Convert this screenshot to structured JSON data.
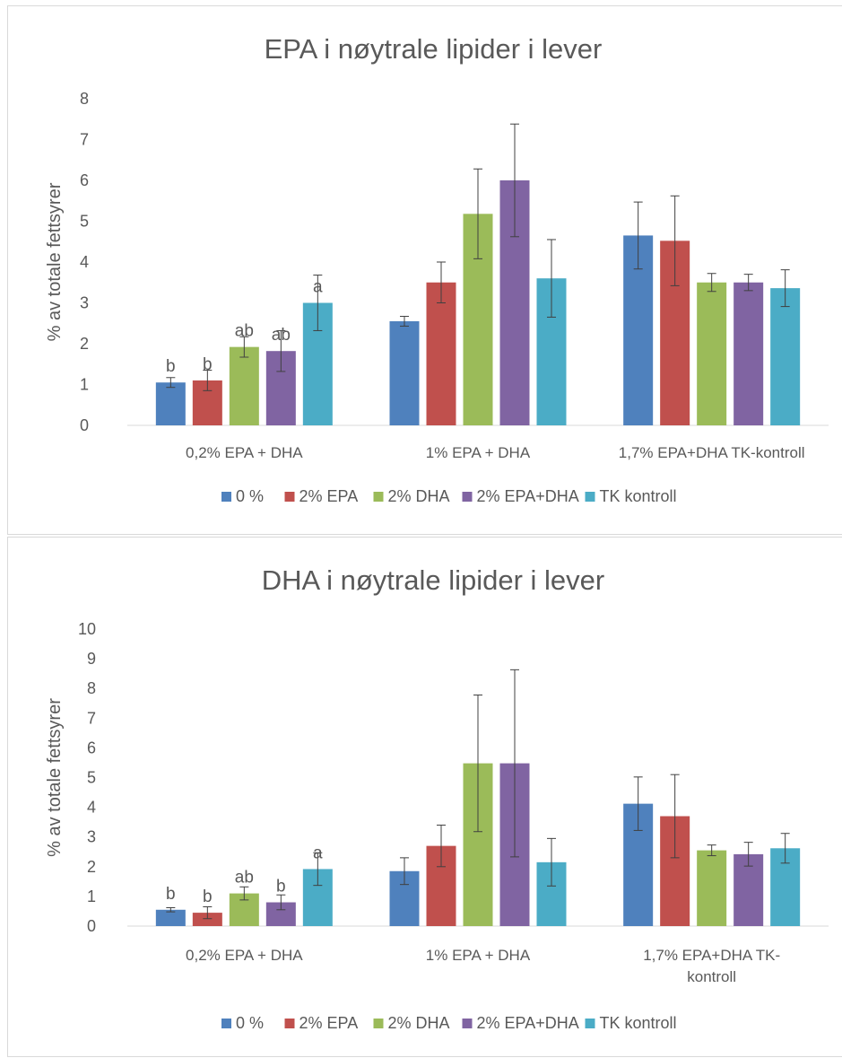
{
  "colors": {
    "0 %": "#4f81bd",
    "2% EPA": "#c0504d",
    "2% DHA": "#9bbb59",
    "2% EPA+DHA": "#8064a2",
    "TK kontroll": "#4bacc6"
  },
  "chart_data": [
    {
      "type": "bar",
      "title": "EPA i nøytrale lipider i lever",
      "ylabel": "% av totale fettsyrer",
      "xlabel": "",
      "ylim": [
        0,
        8
      ],
      "yticks": [
        0,
        1,
        2,
        3,
        4,
        5,
        6,
        7,
        8
      ],
      "categories": [
        "0,2% EPA + DHA",
        "1% EPA + DHA",
        "1,7% EPA+DHA TK-kontroll"
      ],
      "category_lines": [
        [
          "0,2% EPA + DHA"
        ],
        [
          "1% EPA + DHA"
        ],
        [
          "1,7% EPA+DHA TK-kontroll"
        ]
      ],
      "legend": [
        "0 %",
        "2% EPA",
        "2% DHA",
        "2% EPA+DHA",
        "TK kontroll"
      ],
      "legend_position": "bottom",
      "grid": false,
      "series": [
        {
          "name": "0 %",
          "values": [
            1.05,
            2.55,
            4.65
          ],
          "errors": [
            0.12,
            0.12,
            0.82
          ],
          "labels": [
            "b",
            "",
            ""
          ]
        },
        {
          "name": "2% EPA",
          "values": [
            1.1,
            3.5,
            4.52
          ],
          "errors": [
            0.25,
            0.5,
            1.1
          ],
          "labels": [
            "b",
            "",
            ""
          ]
        },
        {
          "name": "2% DHA",
          "values": [
            1.92,
            5.18,
            3.5
          ],
          "errors": [
            0.25,
            1.1,
            0.22
          ],
          "labels": [
            "ab",
            "",
            ""
          ]
        },
        {
          "name": "2% EPA+DHA",
          "values": [
            1.82,
            6.0,
            3.5
          ],
          "errors": [
            0.5,
            1.38,
            0.2
          ],
          "labels": [
            "ab",
            "",
            ""
          ]
        },
        {
          "name": "TK kontroll",
          "values": [
            3.0,
            3.6,
            3.36
          ],
          "errors": [
            0.68,
            0.95,
            0.45
          ],
          "labels": [
            "a",
            "",
            ""
          ]
        }
      ]
    },
    {
      "type": "bar",
      "title": "DHA i nøytrale lipider i lever",
      "ylabel": "% av totale fettsyrer",
      "xlabel": "",
      "ylim": [
        0,
        10
      ],
      "yticks": [
        0,
        1,
        2,
        3,
        4,
        5,
        6,
        7,
        8,
        9,
        10
      ],
      "categories": [
        "0,2% EPA + DHA",
        "1% EPA + DHA",
        "1,7% EPA+DHA TK-kontroll"
      ],
      "category_lines": [
        [
          "0,2% EPA + DHA"
        ],
        [
          "1% EPA + DHA"
        ],
        [
          "1,7% EPA+DHA TK-",
          "kontroll"
        ]
      ],
      "legend": [
        "0 %",
        "2% EPA",
        "2% DHA",
        "2% EPA+DHA",
        "TK kontroll"
      ],
      "legend_position": "bottom",
      "grid": false,
      "series": [
        {
          "name": "0 %",
          "values": [
            0.55,
            1.85,
            4.12
          ],
          "errors": [
            0.07,
            0.45,
            0.9
          ],
          "labels": [
            "b",
            "",
            ""
          ]
        },
        {
          "name": "2% EPA",
          "values": [
            0.45,
            2.7,
            3.7
          ],
          "errors": [
            0.2,
            0.7,
            1.4
          ],
          "labels": [
            "b",
            "",
            ""
          ]
        },
        {
          "name": "2% DHA",
          "values": [
            1.1,
            5.48,
            2.55
          ],
          "errors": [
            0.22,
            2.3,
            0.18
          ],
          "labels": [
            "ab",
            "",
            ""
          ]
        },
        {
          "name": "2% EPA+DHA",
          "values": [
            0.8,
            5.48,
            2.42
          ],
          "errors": [
            0.25,
            3.15,
            0.4
          ],
          "labels": [
            "b",
            "",
            ""
          ]
        },
        {
          "name": "TK kontroll",
          "values": [
            1.92,
            2.15,
            2.62
          ],
          "errors": [
            0.55,
            0.8,
            0.5
          ],
          "labels": [
            "a",
            "",
            ""
          ]
        }
      ]
    }
  ]
}
